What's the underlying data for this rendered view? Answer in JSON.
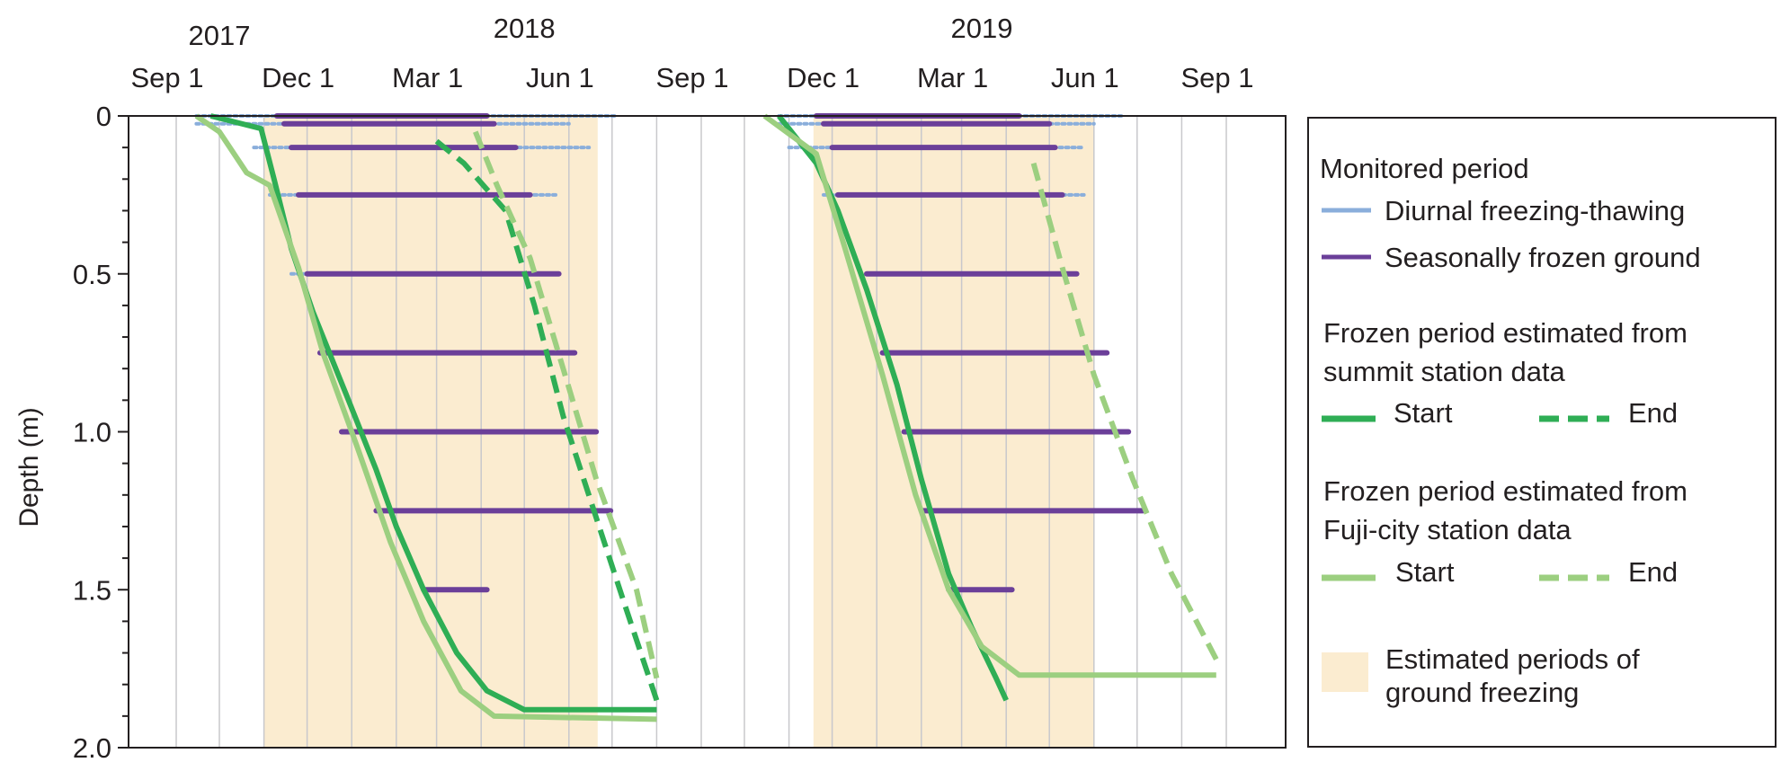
{
  "chart_data": {
    "type": "line",
    "ylabel": "Depth (m)",
    "ylim": [
      0,
      2.0
    ],
    "y_ticks": [
      "0",
      "0.5",
      "1.0",
      "1.5",
      "2.0"
    ],
    "y_inverted": true,
    "x_start": "2017-09-01",
    "x_end": "2019-09-01",
    "x_month_labels": [
      {
        "date": "2017-09-01",
        "label": "Sep  1"
      },
      {
        "date": "2017-12-01",
        "label": "Dec  1"
      },
      {
        "date": "2018-03-01",
        "label": "Mar  1"
      },
      {
        "date": "2018-06-01",
        "label": "Jun  1"
      },
      {
        "date": "2018-09-01",
        "label": "Sep  1"
      },
      {
        "date": "2018-12-01",
        "label": "Dec  1"
      },
      {
        "date": "2019-03-01",
        "label": "Mar  1"
      },
      {
        "date": "2019-06-01",
        "label": "Jun  1"
      },
      {
        "date": "2019-09-01",
        "label": "Sep  1"
      }
    ],
    "year_labels": [
      {
        "date": "2017-10-01",
        "label": "2017"
      },
      {
        "date": "2018-05-01",
        "label": "2018"
      },
      {
        "date": "2019-03-15",
        "label": "2019"
      }
    ],
    "legend_position": "right",
    "legend": {
      "monitored_title": "Monitored period",
      "diurnal": "Diurnal freezing-thawing",
      "seasonal": "Seasonally frozen ground",
      "summit_title_1": "Frozen period estimated from",
      "summit_title_2": "summit station data",
      "fuji_title_1": "Frozen period estimated from",
      "fuji_title_2": "Fuji-city station data",
      "start": "Start",
      "end": "End",
      "shade_1": "Estimated periods of",
      "shade_2": "ground freezing"
    },
    "colors": {
      "diurnal": "#8aaedb",
      "seasonal": "#6b3f99",
      "summit": "#2fae55",
      "fuji": "#9ccf80",
      "shade": "#fbecd0",
      "grid": "#c8c8cc"
    },
    "shaded_periods": [
      {
        "start": "2017-11-01",
        "end": "2018-06-21"
      },
      {
        "start": "2018-11-18",
        "end": "2019-06-01"
      }
    ],
    "series": [
      {
        "name": "Start",
        "group": "summit",
        "points": [
          {
            "date": "2017-09-25",
            "depth": 0
          },
          {
            "date": "2017-10-30",
            "depth": 0.04
          },
          {
            "date": "2017-11-08",
            "depth": 0.2
          },
          {
            "date": "2017-11-20",
            "depth": 0.42
          },
          {
            "date": "2017-12-05",
            "depth": 0.62
          },
          {
            "date": "2017-12-28",
            "depth": 0.88
          },
          {
            "date": "2018-01-18",
            "depth": 1.12
          },
          {
            "date": "2018-02-01",
            "depth": 1.3
          },
          {
            "date": "2018-02-20",
            "depth": 1.5
          },
          {
            "date": "2018-03-15",
            "depth": 1.7
          },
          {
            "date": "2018-04-05",
            "depth": 1.82
          },
          {
            "date": "2018-05-01",
            "depth": 1.88
          },
          {
            "date": "2018-08-01",
            "depth": 1.88
          }
        ]
      },
      {
        "name": "End",
        "group": "summit",
        "points": [
          {
            "date": "2018-03-01",
            "depth": 0.08
          },
          {
            "date": "2018-03-20",
            "depth": 0.15
          },
          {
            "date": "2018-04-18",
            "depth": 0.3
          },
          {
            "date": "2018-05-08",
            "depth": 0.6
          },
          {
            "date": "2018-05-28",
            "depth": 0.95
          },
          {
            "date": "2018-06-22",
            "depth": 1.3
          },
          {
            "date": "2018-07-10",
            "depth": 1.55
          },
          {
            "date": "2018-08-01",
            "depth": 1.85
          }
        ]
      },
      {
        "name": "Start",
        "group": "fuji",
        "points": [
          {
            "date": "2017-09-15",
            "depth": 0
          },
          {
            "date": "2017-10-01",
            "depth": 0.05
          },
          {
            "date": "2017-10-20",
            "depth": 0.18
          },
          {
            "date": "2017-11-05",
            "depth": 0.22
          },
          {
            "date": "2017-11-25",
            "depth": 0.48
          },
          {
            "date": "2017-12-12",
            "depth": 0.75
          },
          {
            "date": "2018-01-05",
            "depth": 1.05
          },
          {
            "date": "2018-01-28",
            "depth": 1.35
          },
          {
            "date": "2018-02-20",
            "depth": 1.6
          },
          {
            "date": "2018-03-18",
            "depth": 1.82
          },
          {
            "date": "2018-04-10",
            "depth": 1.9
          },
          {
            "date": "2018-08-01",
            "depth": 1.91
          }
        ]
      },
      {
        "name": "End",
        "group": "fuji",
        "points": [
          {
            "date": "2018-03-28",
            "depth": 0.05
          },
          {
            "date": "2018-04-12",
            "depth": 0.22
          },
          {
            "date": "2018-05-05",
            "depth": 0.45
          },
          {
            "date": "2018-05-28",
            "depth": 0.8
          },
          {
            "date": "2018-06-20",
            "depth": 1.15
          },
          {
            "date": "2018-07-18",
            "depth": 1.5
          },
          {
            "date": "2018-08-01",
            "depth": 1.78
          }
        ]
      },
      {
        "name": "Start",
        "group": "summit",
        "points": [
          {
            "date": "2018-10-25",
            "depth": 0
          },
          {
            "date": "2018-11-20",
            "depth": 0.15
          },
          {
            "date": "2018-12-05",
            "depth": 0.3
          },
          {
            "date": "2018-12-25",
            "depth": 0.55
          },
          {
            "date": "2019-01-15",
            "depth": 0.85
          },
          {
            "date": "2019-02-01",
            "depth": 1.15
          },
          {
            "date": "2019-02-20",
            "depth": 1.45
          },
          {
            "date": "2019-03-08",
            "depth": 1.62
          },
          {
            "date": "2019-03-25",
            "depth": 1.78
          },
          {
            "date": "2019-04-01",
            "depth": 1.85
          }
        ]
      },
      {
        "name": "Start",
        "group": "fuji",
        "points": [
          {
            "date": "2018-10-15",
            "depth": 0
          },
          {
            "date": "2018-11-20",
            "depth": 0.12
          },
          {
            "date": "2018-12-10",
            "depth": 0.42
          },
          {
            "date": "2019-01-05",
            "depth": 0.82
          },
          {
            "date": "2019-01-28",
            "depth": 1.2
          },
          {
            "date": "2019-02-20",
            "depth": 1.5
          },
          {
            "date": "2019-03-15",
            "depth": 1.68
          },
          {
            "date": "2019-04-10",
            "depth": 1.77
          },
          {
            "date": "2019-08-25",
            "depth": 1.77
          }
        ]
      },
      {
        "name": "End",
        "group": "fuji",
        "points": [
          {
            "date": "2019-04-20",
            "depth": 0.15
          },
          {
            "date": "2019-05-10",
            "depth": 0.48
          },
          {
            "date": "2019-06-01",
            "depth": 0.82
          },
          {
            "date": "2019-06-28",
            "depth": 1.15
          },
          {
            "date": "2019-07-25",
            "depth": 1.45
          },
          {
            "date": "2019-08-25",
            "depth": 1.72
          }
        ]
      }
    ],
    "monitored_bars": [
      {
        "type": "seasonal",
        "depth": 0,
        "start": "2017-11-10",
        "end": "2018-04-05"
      },
      {
        "type": "diurnal",
        "depth": 0,
        "start": "2017-09-15",
        "end": "2018-07-05"
      },
      {
        "type": "seasonal",
        "depth": 0.025,
        "start": "2017-11-15",
        "end": "2018-04-10"
      },
      {
        "type": "diurnal",
        "depth": 0.025,
        "start": "2017-09-15",
        "end": "2018-06-01"
      },
      {
        "type": "seasonal",
        "depth": 0.1,
        "start": "2017-11-20",
        "end": "2018-04-25"
      },
      {
        "type": "diurnal",
        "depth": 0.1,
        "start": "2017-10-25",
        "end": "2018-06-15"
      },
      {
        "type": "seasonal",
        "depth": 0.25,
        "start": "2017-11-25",
        "end": "2018-05-05"
      },
      {
        "type": "diurnal",
        "depth": 0.25,
        "start": "2017-11-05",
        "end": "2018-05-25"
      },
      {
        "type": "seasonal",
        "depth": 0.5,
        "start": "2017-12-01",
        "end": "2018-05-25"
      },
      {
        "type": "diurnal",
        "depth": 0.5,
        "start": "2017-11-20",
        "end": "2017-12-01"
      },
      {
        "type": "seasonal",
        "depth": 0.75,
        "start": "2017-12-10",
        "end": "2018-06-05"
      },
      {
        "type": "seasonal",
        "depth": 1.0,
        "start": "2017-12-25",
        "end": "2018-06-20"
      },
      {
        "type": "seasonal",
        "depth": 1.25,
        "start": "2018-01-18",
        "end": "2018-06-30"
      },
      {
        "type": "seasonal",
        "depth": 1.5,
        "start": "2018-02-20",
        "end": "2018-04-05"
      },
      {
        "type": "seasonal",
        "depth": 0,
        "start": "2018-11-20",
        "end": "2019-04-10"
      },
      {
        "type": "diurnal",
        "depth": 0,
        "start": "2018-10-25",
        "end": "2019-06-20"
      },
      {
        "type": "seasonal",
        "depth": 0.025,
        "start": "2018-11-25",
        "end": "2019-05-01"
      },
      {
        "type": "diurnal",
        "depth": 0.025,
        "start": "2018-10-25",
        "end": "2019-06-01"
      },
      {
        "type": "seasonal",
        "depth": 0.1,
        "start": "2018-12-01",
        "end": "2019-05-05"
      },
      {
        "type": "diurnal",
        "depth": 0.1,
        "start": "2018-11-01",
        "end": "2019-05-25"
      },
      {
        "type": "seasonal",
        "depth": 0.25,
        "start": "2018-12-05",
        "end": "2019-05-10"
      },
      {
        "type": "diurnal",
        "depth": 0.25,
        "start": "2018-11-25",
        "end": "2019-05-25"
      },
      {
        "type": "seasonal",
        "depth": 0.5,
        "start": "2018-12-25",
        "end": "2019-05-20"
      },
      {
        "type": "seasonal",
        "depth": 0.75,
        "start": "2019-01-05",
        "end": "2019-06-10"
      },
      {
        "type": "seasonal",
        "depth": 1.0,
        "start": "2019-01-20",
        "end": "2019-06-25"
      },
      {
        "type": "seasonal",
        "depth": 1.25,
        "start": "2019-02-01",
        "end": "2019-07-05"
      },
      {
        "type": "seasonal",
        "depth": 1.5,
        "start": "2019-02-20",
        "end": "2019-04-05"
      }
    ]
  }
}
